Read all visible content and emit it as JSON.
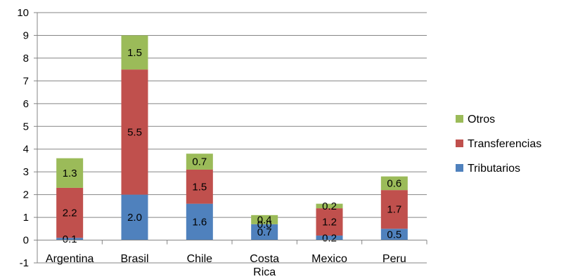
{
  "chart_data": {
    "type": "bar",
    "stacked": true,
    "categories": [
      "Argentina",
      "Brasil",
      "Chile",
      "Costa Rica",
      "Mexico",
      "Peru"
    ],
    "category_lines": [
      [
        "Argentina"
      ],
      [
        "Brasil"
      ],
      [
        "Chile"
      ],
      [
        "Costa",
        "Rica"
      ],
      [
        "Mexico"
      ],
      [
        "Peru"
      ]
    ],
    "series": [
      {
        "name": "Tributarios",
        "color": "#4f81bd",
        "values": [
          0.1,
          2.0,
          1.6,
          0.7,
          0.2,
          0.5
        ],
        "labels": [
          "0.1",
          "2.0",
          "1.6",
          "0.7",
          "0.2",
          "0.5"
        ]
      },
      {
        "name": "Transferencias",
        "color": "#c0504d",
        "values": [
          2.2,
          5.5,
          1.5,
          0.0,
          1.2,
          1.7
        ],
        "labels": [
          "2.2",
          "5.5",
          "1.5",
          "0.0",
          "1.2",
          "1.7"
        ]
      },
      {
        "name": "Otros",
        "color": "#9bbb59",
        "values": [
          1.3,
          1.5,
          0.7,
          0.4,
          0.2,
          0.6
        ],
        "labels": [
          "1.3",
          "1.5",
          "0.7",
          "0.4",
          "0.2",
          "0.6"
        ]
      }
    ],
    "legend_order": [
      "Otros",
      "Transferencias",
      "Tributarios"
    ],
    "ylim": [
      -1,
      10
    ],
    "yticks": [
      "-1",
      "0",
      "1",
      "2",
      "3",
      "4",
      "5",
      "6",
      "7",
      "8",
      "9",
      "10"
    ],
    "grid": true,
    "legend_position": "right",
    "title": "",
    "xlabel": "",
    "ylabel": ""
  }
}
